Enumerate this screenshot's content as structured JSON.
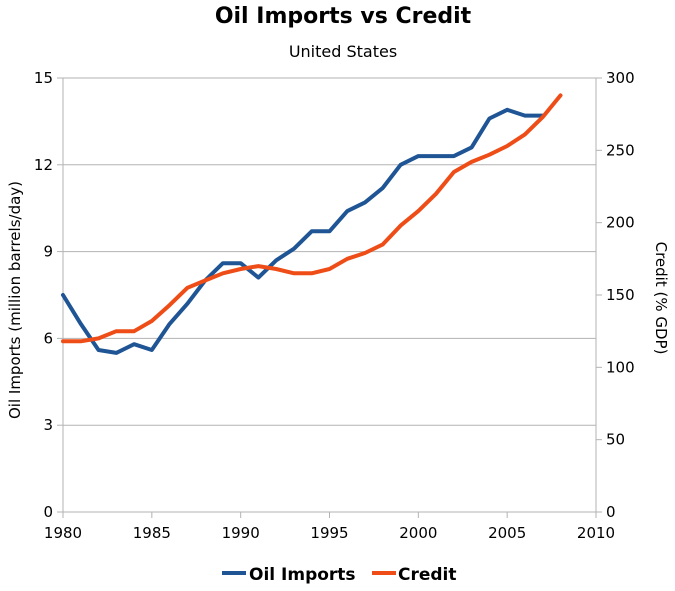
{
  "chart_data": {
    "type": "line",
    "title": "Oil Imports vs Credit",
    "subtitle": "United States",
    "xlim": [
      1980,
      2010
    ],
    "x_ticks": [
      1980,
      1985,
      1990,
      1995,
      2000,
      2005,
      2010
    ],
    "y_left": {
      "label": "Oil Imports (million barrels/day)",
      "lim": [
        0,
        15
      ],
      "ticks": [
        0,
        3,
        6,
        9,
        12,
        15
      ]
    },
    "y_right": {
      "label": "Credit (% GDP)",
      "lim": [
        0,
        300
      ],
      "ticks": [
        0,
        50,
        100,
        150,
        200,
        250,
        300
      ]
    },
    "grid": true,
    "legend_position": "bottom",
    "series": [
      {
        "name": "Oil Imports",
        "axis": "left",
        "color": "#1f5594",
        "x": [
          1980,
          1981,
          1982,
          1983,
          1984,
          1985,
          1986,
          1987,
          1988,
          1989,
          1990,
          1991,
          1992,
          1993,
          1994,
          1995,
          1996,
          1997,
          1998,
          1999,
          2000,
          2001,
          2002,
          2003,
          2004,
          2005,
          2006,
          2007
        ],
        "values": [
          7.5,
          6.5,
          5.6,
          5.5,
          5.8,
          5.6,
          6.5,
          7.2,
          8.0,
          8.6,
          8.6,
          8.1,
          8.7,
          9.1,
          9.7,
          9.7,
          10.4,
          10.7,
          11.2,
          12.0,
          12.3,
          12.3,
          12.3,
          12.6,
          13.6,
          13.9,
          13.7,
          13.7
        ]
      },
      {
        "name": "Credit",
        "axis": "right",
        "color": "#ee4d17",
        "x": [
          1980,
          1981,
          1982,
          1983,
          1984,
          1985,
          1986,
          1987,
          1988,
          1989,
          1990,
          1991,
          1992,
          1993,
          1994,
          1995,
          1996,
          1997,
          1998,
          1999,
          2000,
          2001,
          2002,
          2003,
          2004,
          2005,
          2006,
          2007,
          2008
        ],
        "values": [
          118,
          118,
          120,
          125,
          125,
          132,
          143,
          155,
          160,
          165,
          168,
          170,
          168,
          165,
          165,
          168,
          175,
          179,
          185,
          198,
          208,
          220,
          235,
          242,
          247,
          253,
          261,
          273,
          288
        ]
      }
    ]
  }
}
